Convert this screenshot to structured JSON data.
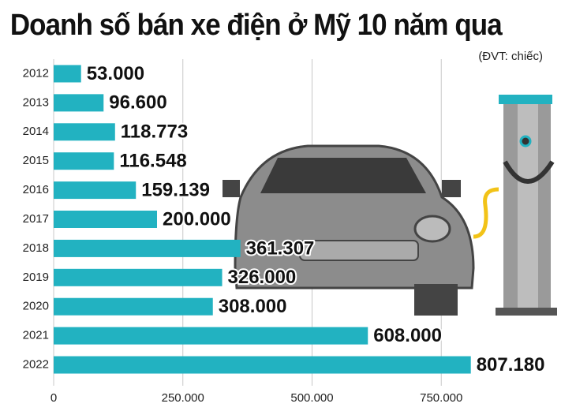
{
  "chart_data": {
    "type": "bar",
    "orientation": "horizontal",
    "title": "Doanh số bán xe điện ở Mỹ 10 năm qua",
    "subtitle": "(ĐVT: chiếc)",
    "categories": [
      "2012",
      "2013",
      "2014",
      "2015",
      "2016",
      "2017",
      "2018",
      "2019",
      "2020",
      "2021",
      "2022"
    ],
    "values": [
      53000,
      96600,
      118773,
      116548,
      159139,
      200000,
      361307,
      326000,
      308000,
      608000,
      807180
    ],
    "value_labels": [
      "53.000",
      "96.600",
      "118.773",
      "116.548",
      "159.139",
      "200.000",
      "361.307",
      "326.000",
      "308.000",
      "608.000",
      "807.180"
    ],
    "color": "#22b2c1",
    "xlim": [
      0,
      1000000
    ],
    "xticks": [
      0,
      {
        "value": 250000,
        "label": "250.000"
      },
      {
        "value": 500000,
        "label": "500.000"
      },
      {
        "value": 750000,
        "label": "750.000"
      }
    ],
    "grid": true
  }
}
